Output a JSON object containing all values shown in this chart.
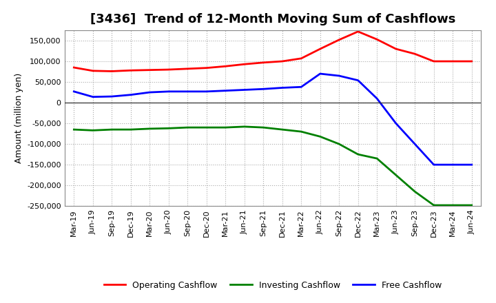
{
  "title": "[3436]  Trend of 12-Month Moving Sum of Cashflows",
  "ylabel": "Amount (million yen)",
  "background_color": "#ffffff",
  "grid_color": "#aaaaaa",
  "x_labels": [
    "Mar-19",
    "Jun-19",
    "Sep-19",
    "Dec-19",
    "Mar-20",
    "Jun-20",
    "Sep-20",
    "Dec-20",
    "Mar-21",
    "Jun-21",
    "Sep-21",
    "Dec-21",
    "Mar-22",
    "Jun-22",
    "Sep-22",
    "Dec-22",
    "Mar-23",
    "Jun-23",
    "Sep-23",
    "Dec-23",
    "Mar-24",
    "Jun-24"
  ],
  "operating": [
    85000,
    77000,
    76000,
    78000,
    79000,
    80000,
    82000,
    84000,
    88000,
    93000,
    97000,
    100000,
    107000,
    130000,
    152000,
    172000,
    153000,
    130000,
    118000,
    100000,
    100000,
    100000
  ],
  "investing": [
    -65000,
    -67000,
    -65000,
    -65000,
    -63000,
    -62000,
    -60000,
    -60000,
    -60000,
    -58000,
    -60000,
    -65000,
    -70000,
    -82000,
    -100000,
    -125000,
    -135000,
    -175000,
    -215000,
    -248000,
    -248000,
    -248000
  ],
  "free": [
    27000,
    14000,
    15000,
    19000,
    25000,
    27000,
    27000,
    27000,
    29000,
    31000,
    33000,
    36000,
    38000,
    70000,
    65000,
    54000,
    10000,
    -50000,
    -100000,
    -150000,
    -150000,
    -150000
  ],
  "ylim": [
    -250000,
    175000
  ],
  "yticks": [
    -250000,
    -200000,
    -150000,
    -100000,
    -50000,
    0,
    50000,
    100000,
    150000
  ],
  "operating_color": "#ff0000",
  "investing_color": "#008000",
  "free_color": "#0000ff",
  "line_width": 2.0,
  "title_fontsize": 13,
  "legend_fontsize": 9,
  "tick_labelsize": 8,
  "ylabel_fontsize": 9
}
